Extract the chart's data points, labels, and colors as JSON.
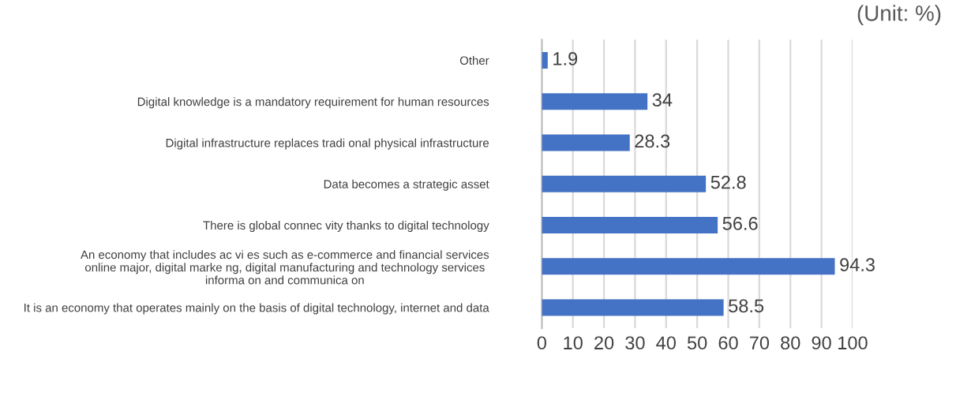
{
  "chart_data": {
    "type": "bar",
    "orientation": "horizontal",
    "title": "(Unit: %)",
    "categories": [
      "Other",
      "Digital knowledge is a mandatory requirement for human resources",
      "Digital infrastructure replaces tradi onal physical infrastructure",
      "Data becomes a strategic asset",
      "There is global connec vity thanks to digital technology",
      "An economy that includes ac vi es such as e-commerce and financial services\nonline major, digital marke ng, digital manufacturing and technology services\ninforma on and communica on",
      "It is an economy that operates mainly on the basis of digital technology, internet and data"
    ],
    "values": [
      1.9,
      34,
      28.3,
      52.8,
      56.6,
      94.3,
      58.5
    ],
    "color": "#4472c4",
    "data_labels": true,
    "xlim": [
      0,
      100
    ],
    "xticks": [
      0,
      10,
      20,
      30,
      40,
      50,
      60,
      70,
      80,
      90,
      100
    ],
    "grid": "x"
  }
}
